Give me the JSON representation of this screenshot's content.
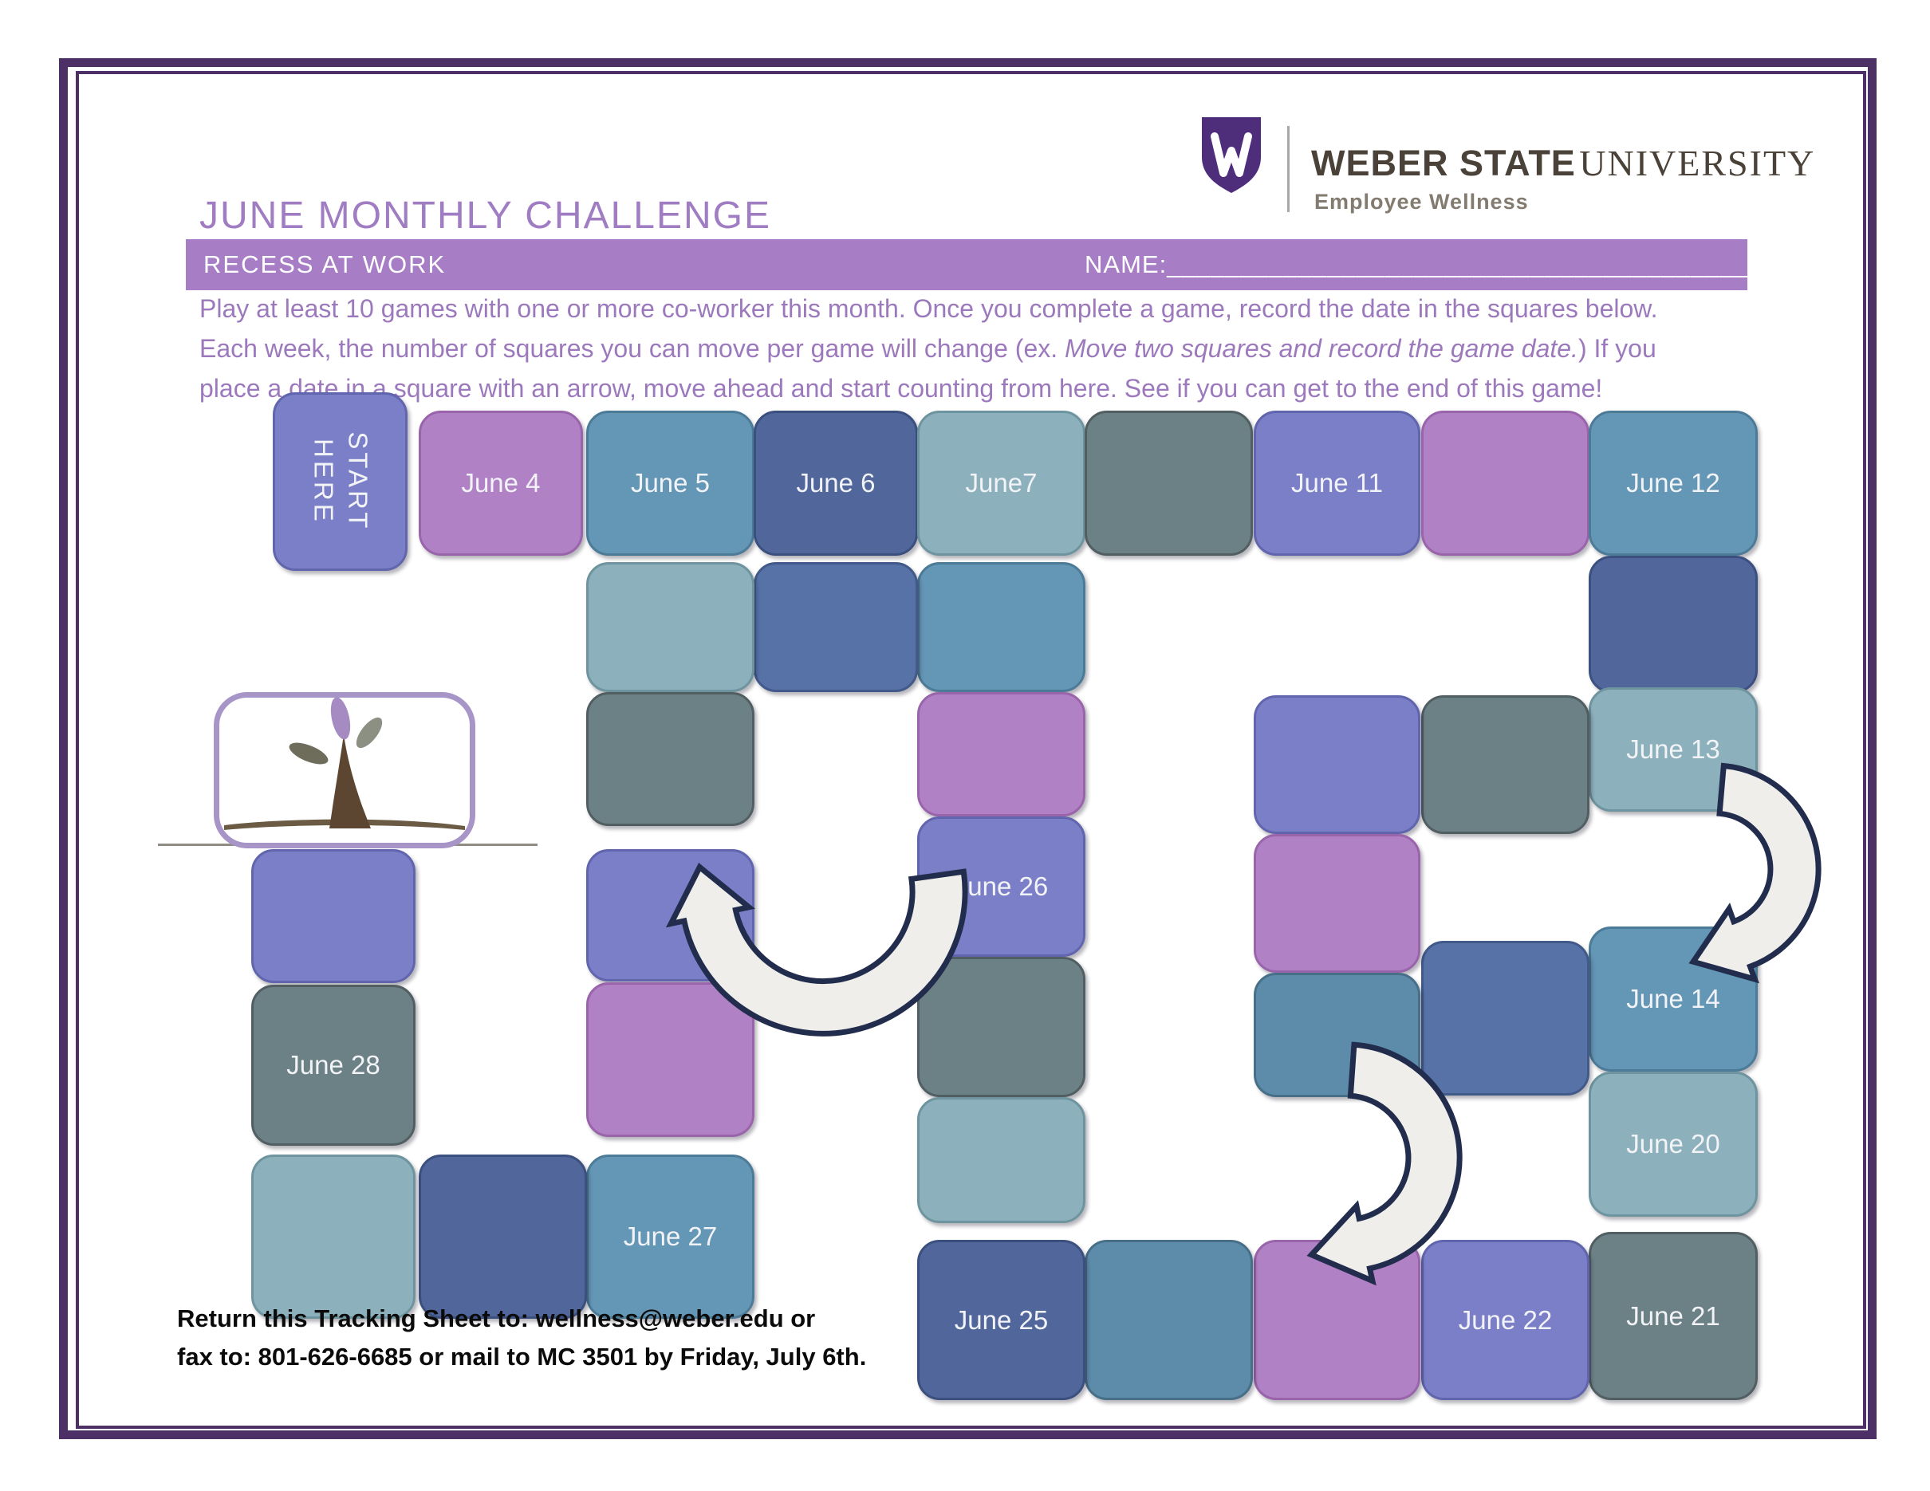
{
  "page": {
    "title": "JUNE MONTHLY CHALLENGE",
    "banner": {
      "label": "RECESS AT WORK",
      "name_label": "NAME:",
      "name_line": "____________________________________________"
    },
    "logo": {
      "wordmark_bold": "WEBER STATE",
      "wordmark_light": "UNIVERSITY",
      "subtitle": "Employee Wellness"
    },
    "instructions": {
      "line1": "Play at least 10 games with one or more co-worker this month. Once you complete a game, record the date in the squares below.",
      "line2_pre": "Each week, the number of squares you can move per game will change (ex. ",
      "line2_italic": "Move two squares and record the game date.",
      "line2_post": ") If you",
      "line3": "place a date in a square with an arrow, move ahead and start counting from here. See if you can get to the end of this game!"
    },
    "footer": {
      "line1": "Return this Tracking Sheet to: wellness@weber.edu or",
      "line2": "fax to: 801-626-6685 or mail to MC 3501 by Friday, July 6th."
    }
  },
  "palette": {
    "periwinkle": {
      "fill": "#7B7FC7",
      "edge": "#6065AE"
    },
    "orchid": {
      "fill": "#B181C6",
      "edge": "#9A64AB"
    },
    "steel": {
      "fill": "#6496B5",
      "edge": "#4C7B97"
    },
    "darkslate": {
      "fill": "#51679C",
      "edge": "#3C507F"
    },
    "cadet": {
      "fill": "#8DB1BC",
      "edge": "#6E959F"
    },
    "graygreen": {
      "fill": "#6C8186",
      "edge": "#515F62"
    },
    "midteal": {
      "fill": "#5D8CAB",
      "edge": "#476F88"
    },
    "slate2": {
      "fill": "#5672A7",
      "edge": "#415A8A"
    },
    "frame": "#4D3166",
    "banner": "#A77DC6",
    "title_text": "#A07CC2",
    "shield": "#4E2D7B"
  },
  "board": {
    "squares": [
      {
        "cell": "start",
        "label": "START\nHERE",
        "color": "periwinkle"
      },
      {
        "cell": "c2r1",
        "label": "June 4",
        "color": "orchid"
      },
      {
        "cell": "c3r1",
        "label": "June 5",
        "color": "steel"
      },
      {
        "cell": "c4r1",
        "label": "June 6",
        "color": "darkslate"
      },
      {
        "cell": "c5r1",
        "label": "June7",
        "color": "cadet"
      },
      {
        "cell": "c6r1",
        "label": "",
        "color": "graygreen"
      },
      {
        "cell": "c7r1",
        "label": "June 11",
        "color": "periwinkle"
      },
      {
        "cell": "c8r1",
        "label": "",
        "color": "orchid"
      },
      {
        "cell": "c9r1",
        "label": "June 12",
        "color": "steel"
      },
      {
        "cell": "c9r2",
        "label": "",
        "color": "darkslate"
      },
      {
        "cell": "c9r3",
        "label": "June 13",
        "color": "cadet"
      },
      {
        "cell": "c9r4",
        "label": "June 14",
        "color": "steel"
      },
      {
        "cell": "c9r5",
        "label": "June 20",
        "color": "cadet"
      },
      {
        "cell": "c9r6",
        "label": "June 21",
        "color": "graygreen"
      },
      {
        "cell": "c8r2",
        "label": "",
        "color": "graygreen"
      },
      {
        "cell": "c8r3",
        "label": "",
        "color": "slate2"
      },
      {
        "cell": "c8r4",
        "label": "June 22",
        "color": "periwinkle"
      },
      {
        "cell": "c7r2",
        "label": "",
        "color": "periwinkle"
      },
      {
        "cell": "c7r3",
        "label": "",
        "color": "orchid"
      },
      {
        "cell": "c7r4",
        "label": "",
        "color": "midteal"
      },
      {
        "cell": "c7r5",
        "label": "",
        "color": "orchid"
      },
      {
        "cell": "c6r2",
        "label": "",
        "color": "midteal"
      },
      {
        "cell": "c5r2",
        "label": "",
        "color": "steel"
      },
      {
        "cell": "c5r3",
        "label": "",
        "color": "orchid"
      },
      {
        "cell": "c5r4",
        "label": "June 26",
        "color": "periwinkle"
      },
      {
        "cell": "c5r5",
        "label": "",
        "color": "graygreen"
      },
      {
        "cell": "c5r6",
        "label": "",
        "color": "cadet"
      },
      {
        "cell": "c5r7",
        "label": "June 25",
        "color": "darkslate"
      },
      {
        "cell": "c4r2",
        "label": "",
        "color": "slate2"
      },
      {
        "cell": "c3r2",
        "label": "",
        "color": "cadet"
      },
      {
        "cell": "c3r3",
        "label": "",
        "color": "graygreen"
      },
      {
        "cell": "c3r4",
        "label": "",
        "color": "periwinkle"
      },
      {
        "cell": "c3r5",
        "label": "",
        "color": "orchid"
      },
      {
        "cell": "c3r6",
        "label": "June 27",
        "color": "steel"
      },
      {
        "cell": "c2r2",
        "label": "",
        "color": "darkslate"
      },
      {
        "cell": "c1r2",
        "label": "",
        "color": "periwinkle"
      },
      {
        "cell": "c1r3",
        "label": "June 28",
        "color": "graygreen"
      },
      {
        "cell": "c1r4",
        "label": "",
        "color": "cadet"
      }
    ]
  }
}
